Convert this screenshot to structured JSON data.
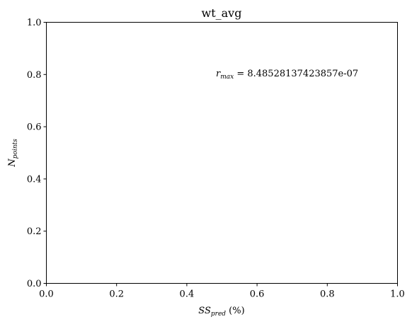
{
  "chart_data": {
    "type": "scatter",
    "title": "wt_avg",
    "xlabel": {
      "base": "SS",
      "sub": "pred",
      "suffix": " (%)"
    },
    "ylabel": {
      "base": "N",
      "sub": "points"
    },
    "xlim": [
      0.0,
      1.0
    ],
    "ylim": [
      0.0,
      1.0
    ],
    "xticks": [
      "0.0",
      "0.2",
      "0.4",
      "0.6",
      "0.8",
      "1.0"
    ],
    "yticks": [
      "0.0",
      "0.2",
      "0.4",
      "0.6",
      "0.8",
      "1.0"
    ],
    "series": [],
    "grid": false,
    "annotation": {
      "base": "r",
      "sub": "max",
      "text": " = 8.48528137423857e-07"
    }
  }
}
